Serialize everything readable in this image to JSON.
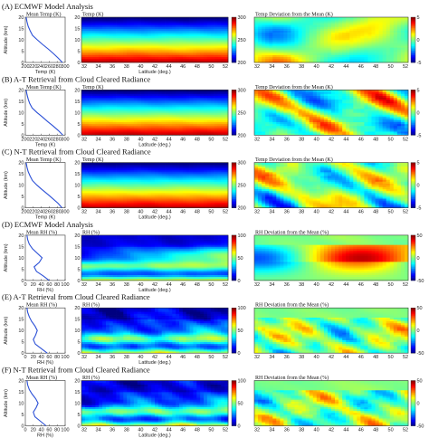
{
  "chart_data": {
    "type": "heatmap",
    "rows": [
      {
        "title": "(A) ECMWF Model Analysis",
        "variable": "temp",
        "profile": {
          "title": "Mean Temp (K)",
          "xlabel": "Temp (K)",
          "ylabel": "Altitude (km)",
          "xlim": [
            200,
            300
          ],
          "xticks": [
            "200",
            "220",
            "240",
            "260",
            "280",
            "300"
          ],
          "ylim": [
            0,
            20
          ],
          "yticks": [
            "0",
            "5",
            "10",
            "15",
            "20"
          ],
          "y": [
            0,
            2,
            4,
            6,
            8,
            10,
            12,
            14,
            16,
            18,
            20
          ],
          "x": [
            293,
            282,
            270,
            257,
            243,
            230,
            218,
            212,
            207,
            204,
            202
          ]
        },
        "field": {
          "title": "Temp (K)",
          "xlabel": "Latitude (deg.)",
          "xticks": [
            "32",
            "34",
            "36",
            "38",
            "40",
            "42",
            "44",
            "46",
            "48",
            "50",
            "52"
          ],
          "yticks": [
            "0",
            "5",
            "10",
            "15",
            "20"
          ],
          "colorbar": {
            "min": 200,
            "max": 300,
            "ticks": [
              "200",
              "250",
              "300"
            ]
          }
        },
        "deviation": {
          "title": "Temp Deviation from the Mean (K)",
          "xticks": [
            "32",
            "34",
            "36",
            "38",
            "40",
            "42",
            "44",
            "46",
            "48",
            "50",
            "52"
          ],
          "colorbar": {
            "min": -5,
            "max": 5,
            "ticks": [
              "-5",
              "0",
              "5"
            ]
          }
        }
      },
      {
        "title": "(B) A-T Retrieval from Cloud Cleared Radiance",
        "variable": "temp",
        "profile": {
          "title": "Mean Temp (K)",
          "xlabel": "Temp (K)",
          "ylabel": "Altitude (km)",
          "xlim": [
            200,
            300
          ],
          "xticks": [
            "200",
            "220",
            "240",
            "260",
            "280",
            "300"
          ],
          "ylim": [
            0,
            20
          ],
          "yticks": [
            "0",
            "5",
            "10",
            "15",
            "20"
          ],
          "y": [
            0,
            2,
            4,
            6,
            8,
            10,
            12,
            14,
            16,
            18,
            20
          ],
          "x": [
            294,
            283,
            270,
            256,
            243,
            229,
            217,
            211,
            207,
            204,
            202
          ]
        },
        "field": {
          "title": "Temp (K)",
          "xlabel": "Latitude (deg.)",
          "xticks": [
            "32",
            "34",
            "36",
            "38",
            "40",
            "42",
            "44",
            "46",
            "48",
            "50",
            "52"
          ],
          "yticks": [
            "0",
            "5",
            "10",
            "15",
            "20"
          ],
          "colorbar": {
            "min": 200,
            "max": 300,
            "ticks": [
              "200",
              "250",
              "300"
            ]
          }
        },
        "deviation": {
          "title": "Temp Deviation from the Mean (K)",
          "xticks": [
            "32",
            "34",
            "36",
            "38",
            "40",
            "42",
            "44",
            "46",
            "48",
            "50",
            "52"
          ],
          "colorbar": {
            "min": -5,
            "max": 5,
            "ticks": [
              "-5",
              "0",
              "5"
            ]
          }
        }
      },
      {
        "title": "(C) N-T Retrieval from Cloud Cleared Radiance",
        "variable": "temp",
        "profile": {
          "title": "Mean Temp (K)",
          "xlabel": "Temp (K)",
          "ylabel": "Altitude (km)",
          "xlim": [
            200,
            300
          ],
          "xticks": [
            "200",
            "220",
            "240",
            "260",
            "280",
            "300"
          ],
          "ylim": [
            0,
            20
          ],
          "yticks": [
            "0",
            "5",
            "10",
            "15",
            "20"
          ],
          "y": [
            0,
            2,
            4,
            6,
            8,
            10,
            12,
            14,
            16,
            18,
            20
          ],
          "x": [
            292,
            282,
            269,
            256,
            242,
            229,
            218,
            212,
            207,
            204,
            202
          ]
        },
        "field": {
          "title": "Temp (K)",
          "xlabel": "Latitude (deg.)",
          "xticks": [
            "32",
            "34",
            "36",
            "38",
            "40",
            "42",
            "44",
            "46",
            "48",
            "50",
            "52"
          ],
          "yticks": [
            "0",
            "5",
            "10",
            "15",
            "20"
          ],
          "colorbar": {
            "min": 200,
            "max": 300,
            "ticks": [
              "200",
              "250",
              "300"
            ]
          }
        },
        "deviation": {
          "title": "Temp Deviation from the Mean (K)",
          "xticks": [
            "32",
            "34",
            "36",
            "38",
            "40",
            "42",
            "44",
            "46",
            "48",
            "50",
            "52"
          ],
          "colorbar": {
            "min": -5,
            "max": 5,
            "ticks": [
              "-5",
              "0",
              "5"
            ]
          }
        }
      },
      {
        "title": "(D) ECMWF Model Analysis",
        "variable": "rh",
        "profile": {
          "title": "Mean RH (%)",
          "xlabel": "RH (%)",
          "ylabel": "Altitude (km)",
          "xlim": [
            0,
            100
          ],
          "xticks": [
            "0",
            "20",
            "40",
            "60",
            "80",
            "100"
          ],
          "ylim": [
            0,
            20
          ],
          "yticks": [
            "0",
            "5",
            "10",
            "15",
            "20"
          ],
          "y": [
            0,
            2,
            4,
            6,
            8,
            10,
            12,
            14,
            16,
            18,
            20
          ],
          "x": [
            60,
            45,
            28,
            22,
            35,
            42,
            30,
            18,
            10,
            6,
            4
          ]
        },
        "field": {
          "title": "RH (%)",
          "xlabel": "Latitude (deg.)",
          "xticks": [
            "32",
            "34",
            "36",
            "38",
            "40",
            "42",
            "44",
            "46",
            "48",
            "50",
            "52"
          ],
          "yticks": [
            "0",
            "5",
            "10",
            "15",
            "20"
          ],
          "colorbar": {
            "min": 0,
            "max": 100,
            "ticks": [
              "0",
              "50",
              "100"
            ]
          }
        },
        "deviation": {
          "title": "RH Deviation from the Mean (%)",
          "xticks": [
            "32",
            "34",
            "36",
            "38",
            "40",
            "42",
            "44",
            "46",
            "48",
            "50",
            "52"
          ],
          "colorbar": {
            "min": -50,
            "max": 50,
            "ticks": [
              "-50",
              "0",
              "50"
            ]
          }
        }
      },
      {
        "title": "(E) A-T Retrieval from Cloud Cleared Radiance",
        "variable": "rh",
        "profile": {
          "title": "Mean RH (%)",
          "xlabel": "RH (%)",
          "ylabel": "Altitude (km)",
          "xlim": [
            0,
            100
          ],
          "xticks": [
            "0",
            "20",
            "40",
            "60",
            "80",
            "100"
          ],
          "ylim": [
            0,
            20
          ],
          "yticks": [
            "0",
            "5",
            "10",
            "15",
            "20"
          ],
          "y": [
            0,
            2,
            4,
            6,
            8,
            10,
            12,
            14,
            16,
            18,
            20
          ],
          "x": [
            55,
            40,
            25,
            20,
            26,
            30,
            24,
            16,
            10,
            6,
            4
          ]
        },
        "field": {
          "title": "RH (%)",
          "xlabel": "Latitude (deg.)",
          "xticks": [
            "32",
            "34",
            "36",
            "38",
            "40",
            "42",
            "44",
            "46",
            "48",
            "50",
            "52"
          ],
          "yticks": [
            "0",
            "5",
            "10",
            "15",
            "20"
          ],
          "colorbar": {
            "min": 0,
            "max": 100,
            "ticks": [
              "0",
              "50",
              "100"
            ]
          }
        },
        "deviation": {
          "title": "RH Deviation from the Mean (%)",
          "xticks": [
            "32",
            "34",
            "36",
            "38",
            "40",
            "42",
            "44",
            "46",
            "48",
            "50",
            "52"
          ],
          "colorbar": {
            "min": -50,
            "max": 50,
            "ticks": [
              "-50",
              "0",
              "50"
            ]
          }
        }
      },
      {
        "title": "(F) N-T Retrieval from Cloud Cleared Radiance",
        "variable": "rh",
        "profile": {
          "title": "Mean RH (%)",
          "xlabel": "RH (%)",
          "ylabel": "Altitude (km)",
          "xlim": [
            0,
            100
          ],
          "xticks": [
            "0",
            "20",
            "40",
            "60",
            "80",
            "100"
          ],
          "ylim": [
            0,
            20
          ],
          "yticks": [
            "0",
            "5",
            "10",
            "15",
            "20"
          ],
          "y": [
            0,
            2,
            4,
            6,
            8,
            10,
            12,
            14,
            16,
            18,
            20
          ],
          "x": [
            52,
            38,
            24,
            20,
            27,
            32,
            26,
            17,
            10,
            6,
            4
          ]
        },
        "field": {
          "title": "RH (%)",
          "xlabel": "Latitude (deg.)",
          "xticks": [
            "32",
            "34",
            "36",
            "38",
            "40",
            "42",
            "44",
            "46",
            "48",
            "50",
            "52"
          ],
          "yticks": [
            "0",
            "5",
            "10",
            "15",
            "20"
          ],
          "colorbar": {
            "min": 0,
            "max": 100,
            "ticks": [
              "0",
              "50",
              "100"
            ]
          }
        },
        "deviation": {
          "title": "RH Deviation from the Mean (%)",
          "xticks": [
            "32",
            "34",
            "36",
            "38",
            "40",
            "42",
            "44",
            "46",
            "48",
            "50",
            "52"
          ],
          "colorbar": {
            "min": -50,
            "max": 50,
            "ticks": [
              "-50",
              "0",
              "50"
            ]
          }
        }
      }
    ],
    "line_color": "#2a4fd6",
    "colormap": "jet"
  }
}
